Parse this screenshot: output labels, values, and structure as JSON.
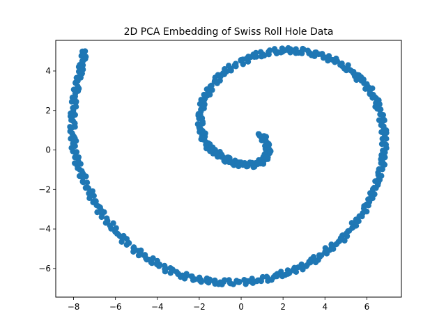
{
  "chart_data": {
    "type": "scatter",
    "title": "2D PCA Embedding of Swiss Roll Hole Data",
    "xlabel": "",
    "ylabel": "",
    "xlim": [
      -8.85,
      7.65
    ],
    "ylim": [
      -7.45,
      5.55
    ],
    "xticks": [
      -8,
      -6,
      -4,
      -2,
      0,
      2,
      4,
      6
    ],
    "yticks": [
      -6,
      -4,
      -2,
      0,
      2,
      4
    ],
    "xtick_labels": [
      "−8",
      "−6",
      "−4",
      "−2",
      "0",
      "2",
      "4",
      "6"
    ],
    "ytick_labels": [
      "−6",
      "−4",
      "−2",
      "0",
      "2",
      "4"
    ],
    "grid": false,
    "legend": "none",
    "point_color": "#1f77b4",
    "series": [
      {
        "x": [
          0.85,
          1.15,
          1.3,
          1.25,
          1.0,
          0.6,
          0.1,
          -0.45,
          -0.95,
          -1.4,
          -1.75,
          -1.95,
          -1.95,
          -1.8,
          -1.45,
          -0.95,
          -0.3,
          0.45,
          1.3,
          2.1,
          2.9,
          3.7,
          4.5,
          5.2,
          5.8,
          6.3,
          6.6,
          6.8,
          6.85,
          6.75,
          6.55,
          6.2,
          5.8,
          5.3,
          4.7,
          4.0,
          3.3,
          2.5,
          1.7,
          0.8,
          -0.1,
          -1.0,
          -1.9,
          -2.8,
          -3.6,
          -4.4,
          -5.1,
          -5.8,
          -6.4,
          -6.9,
          -7.35,
          -7.7,
          -7.95,
          -8.05,
          -8.05,
          -7.95,
          -7.8,
          -7.6,
          -7.45
        ],
        "y": [
          0.8,
          0.5,
          0.1,
          -0.3,
          -0.6,
          -0.75,
          -0.75,
          -0.6,
          -0.35,
          0.0,
          0.5,
          1.1,
          1.8,
          2.5,
          3.2,
          3.8,
          4.3,
          4.7,
          4.95,
          5.05,
          5.0,
          4.85,
          4.5,
          4.05,
          3.5,
          2.8,
          2.05,
          1.2,
          0.3,
          -0.6,
          -1.5,
          -2.4,
          -3.2,
          -3.95,
          -4.6,
          -5.2,
          -5.7,
          -6.1,
          -6.4,
          -6.6,
          -6.7,
          -6.7,
          -6.6,
          -6.35,
          -6.0,
          -5.55,
          -5.0,
          -4.35,
          -3.6,
          -2.8,
          -1.9,
          -1.0,
          -0.1,
          0.8,
          1.7,
          2.6,
          3.5,
          4.35,
          5.0
        ]
      }
    ]
  }
}
